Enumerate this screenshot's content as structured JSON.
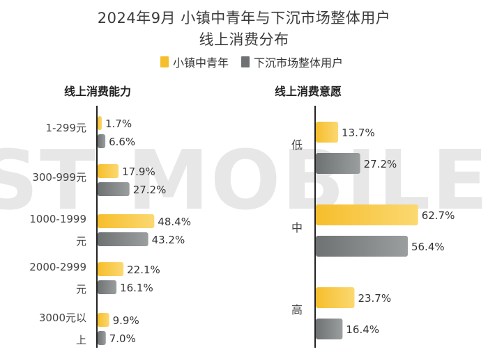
{
  "title_line1": "2024年9月 小镇中青年与下沉市场整体用户",
  "title_line2": "线上消费分布",
  "watermark": "ST MOBILE",
  "colors": {
    "series1": "#F6BE2C",
    "series2": "#6E7273",
    "axis": "#222222",
    "text": "#333333"
  },
  "chart_data": [
    {
      "type": "bar",
      "orientation": "horizontal",
      "subtitle": "线上消费能力",
      "categories": [
        "1-299元",
        "300-999元",
        "1000-1999元",
        "2000-2999元",
        "3000元以上"
      ],
      "series": [
        {
          "name": "小镇中青年",
          "values": [
            1.7,
            17.9,
            48.4,
            22.1,
            9.9
          ]
        },
        {
          "name": "下沉市场整体用户",
          "values": [
            6.6,
            27.2,
            43.2,
            16.1,
            7.0
          ]
        }
      ],
      "value_labels": [
        [
          "1.7%",
          "17.9%",
          "48.4%",
          "22.1%",
          "9.9%"
        ],
        [
          "6.6%",
          "27.2%",
          "43.2%",
          "16.1%",
          "7.0%"
        ]
      ],
      "grid": false
    },
    {
      "type": "bar",
      "orientation": "horizontal",
      "subtitle": "线上消费意愿",
      "categories": [
        "低",
        "中",
        "高"
      ],
      "series": [
        {
          "name": "小镇中青年",
          "values": [
            13.7,
            62.7,
            23.7
          ]
        },
        {
          "name": "下沉市场整体用户",
          "values": [
            27.2,
            56.4,
            16.4
          ]
        }
      ],
      "value_labels": [
        [
          "13.7%",
          "62.7%",
          "23.7%"
        ],
        [
          "27.2%",
          "56.4%",
          "16.4%"
        ]
      ],
      "grid": false
    }
  ]
}
